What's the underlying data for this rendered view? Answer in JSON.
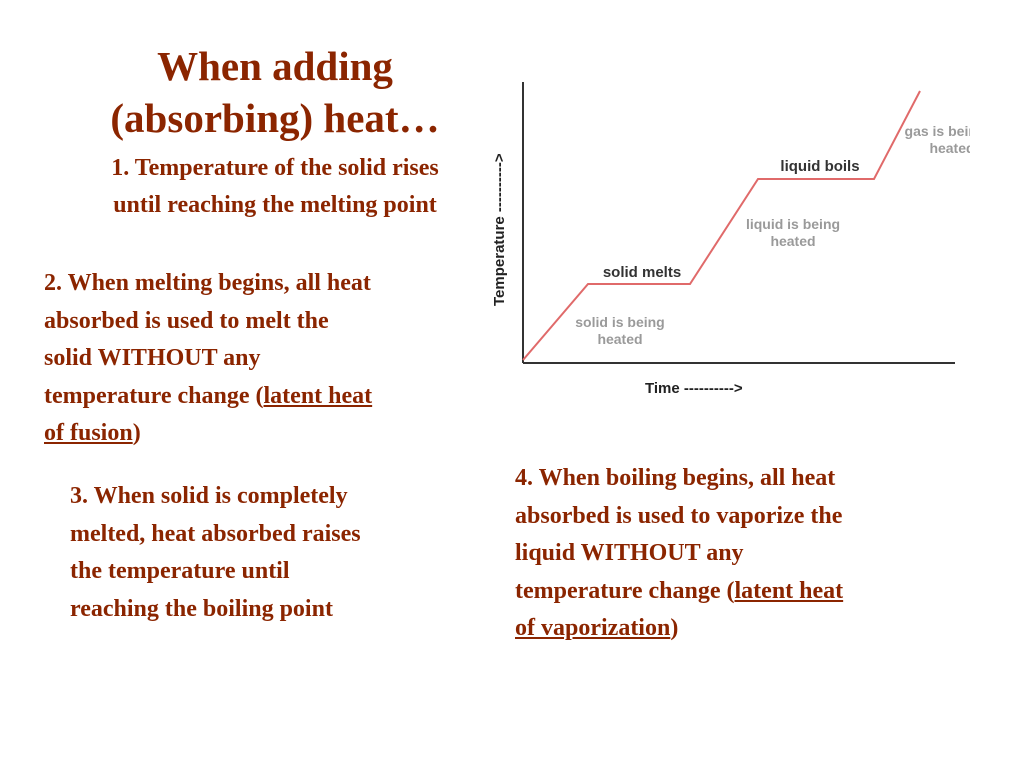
{
  "title": {
    "line1": "When adding",
    "line2": "(absorbing) heat…"
  },
  "point1": {
    "line1": "1. Temperature of the solid rises",
    "line2": "until reaching the melting point"
  },
  "point2": {
    "line1": "2. When melting begins, all heat",
    "line2": "absorbed is used to melt the",
    "line3": "solid WITHOUT any",
    "line4_prefix": "temperature change (",
    "term_part1": "latent heat",
    "term_part2": "of fusion",
    "suffix": ")"
  },
  "point3": {
    "line1": "3. When solid is completely",
    "line2": "melted, heat absorbed raises",
    "line3": "the temperature until",
    "line4": "reaching the boiling point"
  },
  "point4": {
    "line1": "4. When boiling begins, all heat",
    "line2": "absorbed is used to vaporize the",
    "line3": "liquid WITHOUT any",
    "line4_prefix": "temperature change (",
    "term_part1": "latent heat",
    "term_part2": "of vaporization",
    "suffix": ")"
  },
  "diagram": {
    "x_label": "Time ---------->",
    "y_label": "Temperature ---------->",
    "labels": {
      "solid_heated_1": "solid is being",
      "solid_heated_2": "heated",
      "solid_melts": "solid melts",
      "liquid_heated_1": "liquid is being",
      "liquid_heated_2": "heated",
      "liquid_boils": "liquid boils",
      "gas_heated_1": "gas is being",
      "gas_heated_2": "heated"
    },
    "colors": {
      "curve": "#E06A6A",
      "axis": "#333333",
      "text": "#8B2500"
    }
  }
}
